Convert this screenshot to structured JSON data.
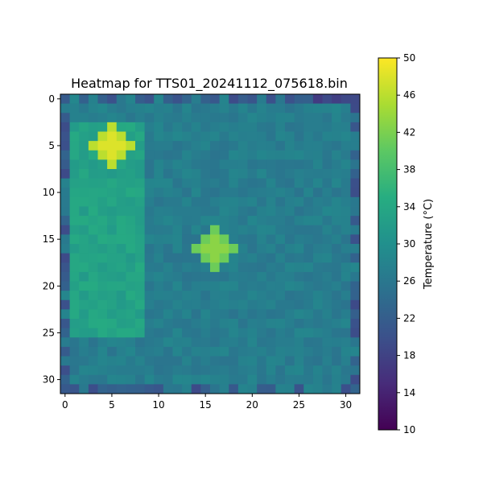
{
  "chart_data": {
    "type": "heatmap",
    "title": "Heatmap for TTS01_20241112_075618.bin",
    "xlabel": "",
    "ylabel": "",
    "grid_size": [
      32,
      32
    ],
    "xlim": [
      -0.5,
      31.5
    ],
    "ylim": [
      31.5,
      -0.5
    ],
    "x_ticks": [
      0,
      5,
      10,
      15,
      20,
      25,
      30
    ],
    "y_ticks": [
      0,
      5,
      10,
      15,
      20,
      25,
      30
    ],
    "colormap": "viridis",
    "colorbar": {
      "label": "Temperature (°C)",
      "range": [
        10,
        50
      ],
      "ticks": [
        10,
        14,
        18,
        22,
        26,
        30,
        34,
        38,
        42,
        46,
        50
      ]
    },
    "base_temperature": 27,
    "hot_spots": [
      {
        "row": 5,
        "col": 5,
        "radius": 2,
        "value": 48
      },
      {
        "row": 16,
        "col": 16,
        "radius": 2,
        "value": 43
      }
    ],
    "warm_band": {
      "rows": [
        3,
        25
      ],
      "cols": [
        1,
        8
      ],
      "value": 33
    },
    "cool_edges": {
      "value": 21
    }
  }
}
